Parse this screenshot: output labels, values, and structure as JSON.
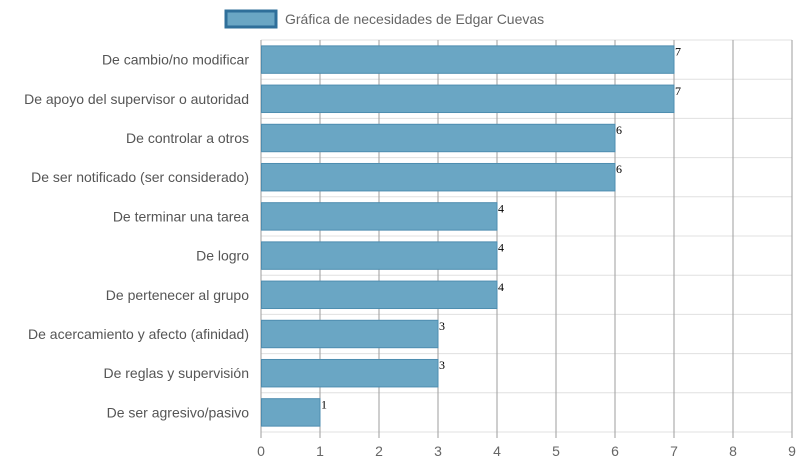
{
  "chart_data": {
    "type": "bar",
    "orientation": "horizontal",
    "legend": {
      "label": "Gráfica de necesidades de Edgar Cuevas",
      "placement": "top-center"
    },
    "categories": [
      "De cambio/no modificar",
      "De apoyo del supervisor o autoridad",
      "De controlar a otros",
      "De ser notificado (ser considerado)",
      "De terminar una tarea",
      "De logro",
      "De pertenecer al grupo",
      "De acercamiento y afecto (afinidad)",
      "De reglas y supervisión",
      "De ser agresivo/pasivo"
    ],
    "series": [
      {
        "name": "Gráfica de necesidades de Edgar Cuevas",
        "values": [
          7,
          7,
          6,
          6,
          4,
          4,
          4,
          3,
          3,
          1
        ]
      }
    ],
    "xlim": [
      0,
      9
    ],
    "xticks": [
      0,
      1,
      2,
      3,
      4,
      5,
      6,
      7,
      8,
      9
    ],
    "grid": true,
    "data_labels": true,
    "colors": {
      "bar_fill": "#6aa6c4",
      "bar_stroke": "#4e8db0",
      "legend_fill": "#6aa6c4",
      "legend_stroke": "#2f6f9a",
      "grid_vertical": "#9e9e9e",
      "grid_horizontal": "#e0e0e0"
    }
  }
}
